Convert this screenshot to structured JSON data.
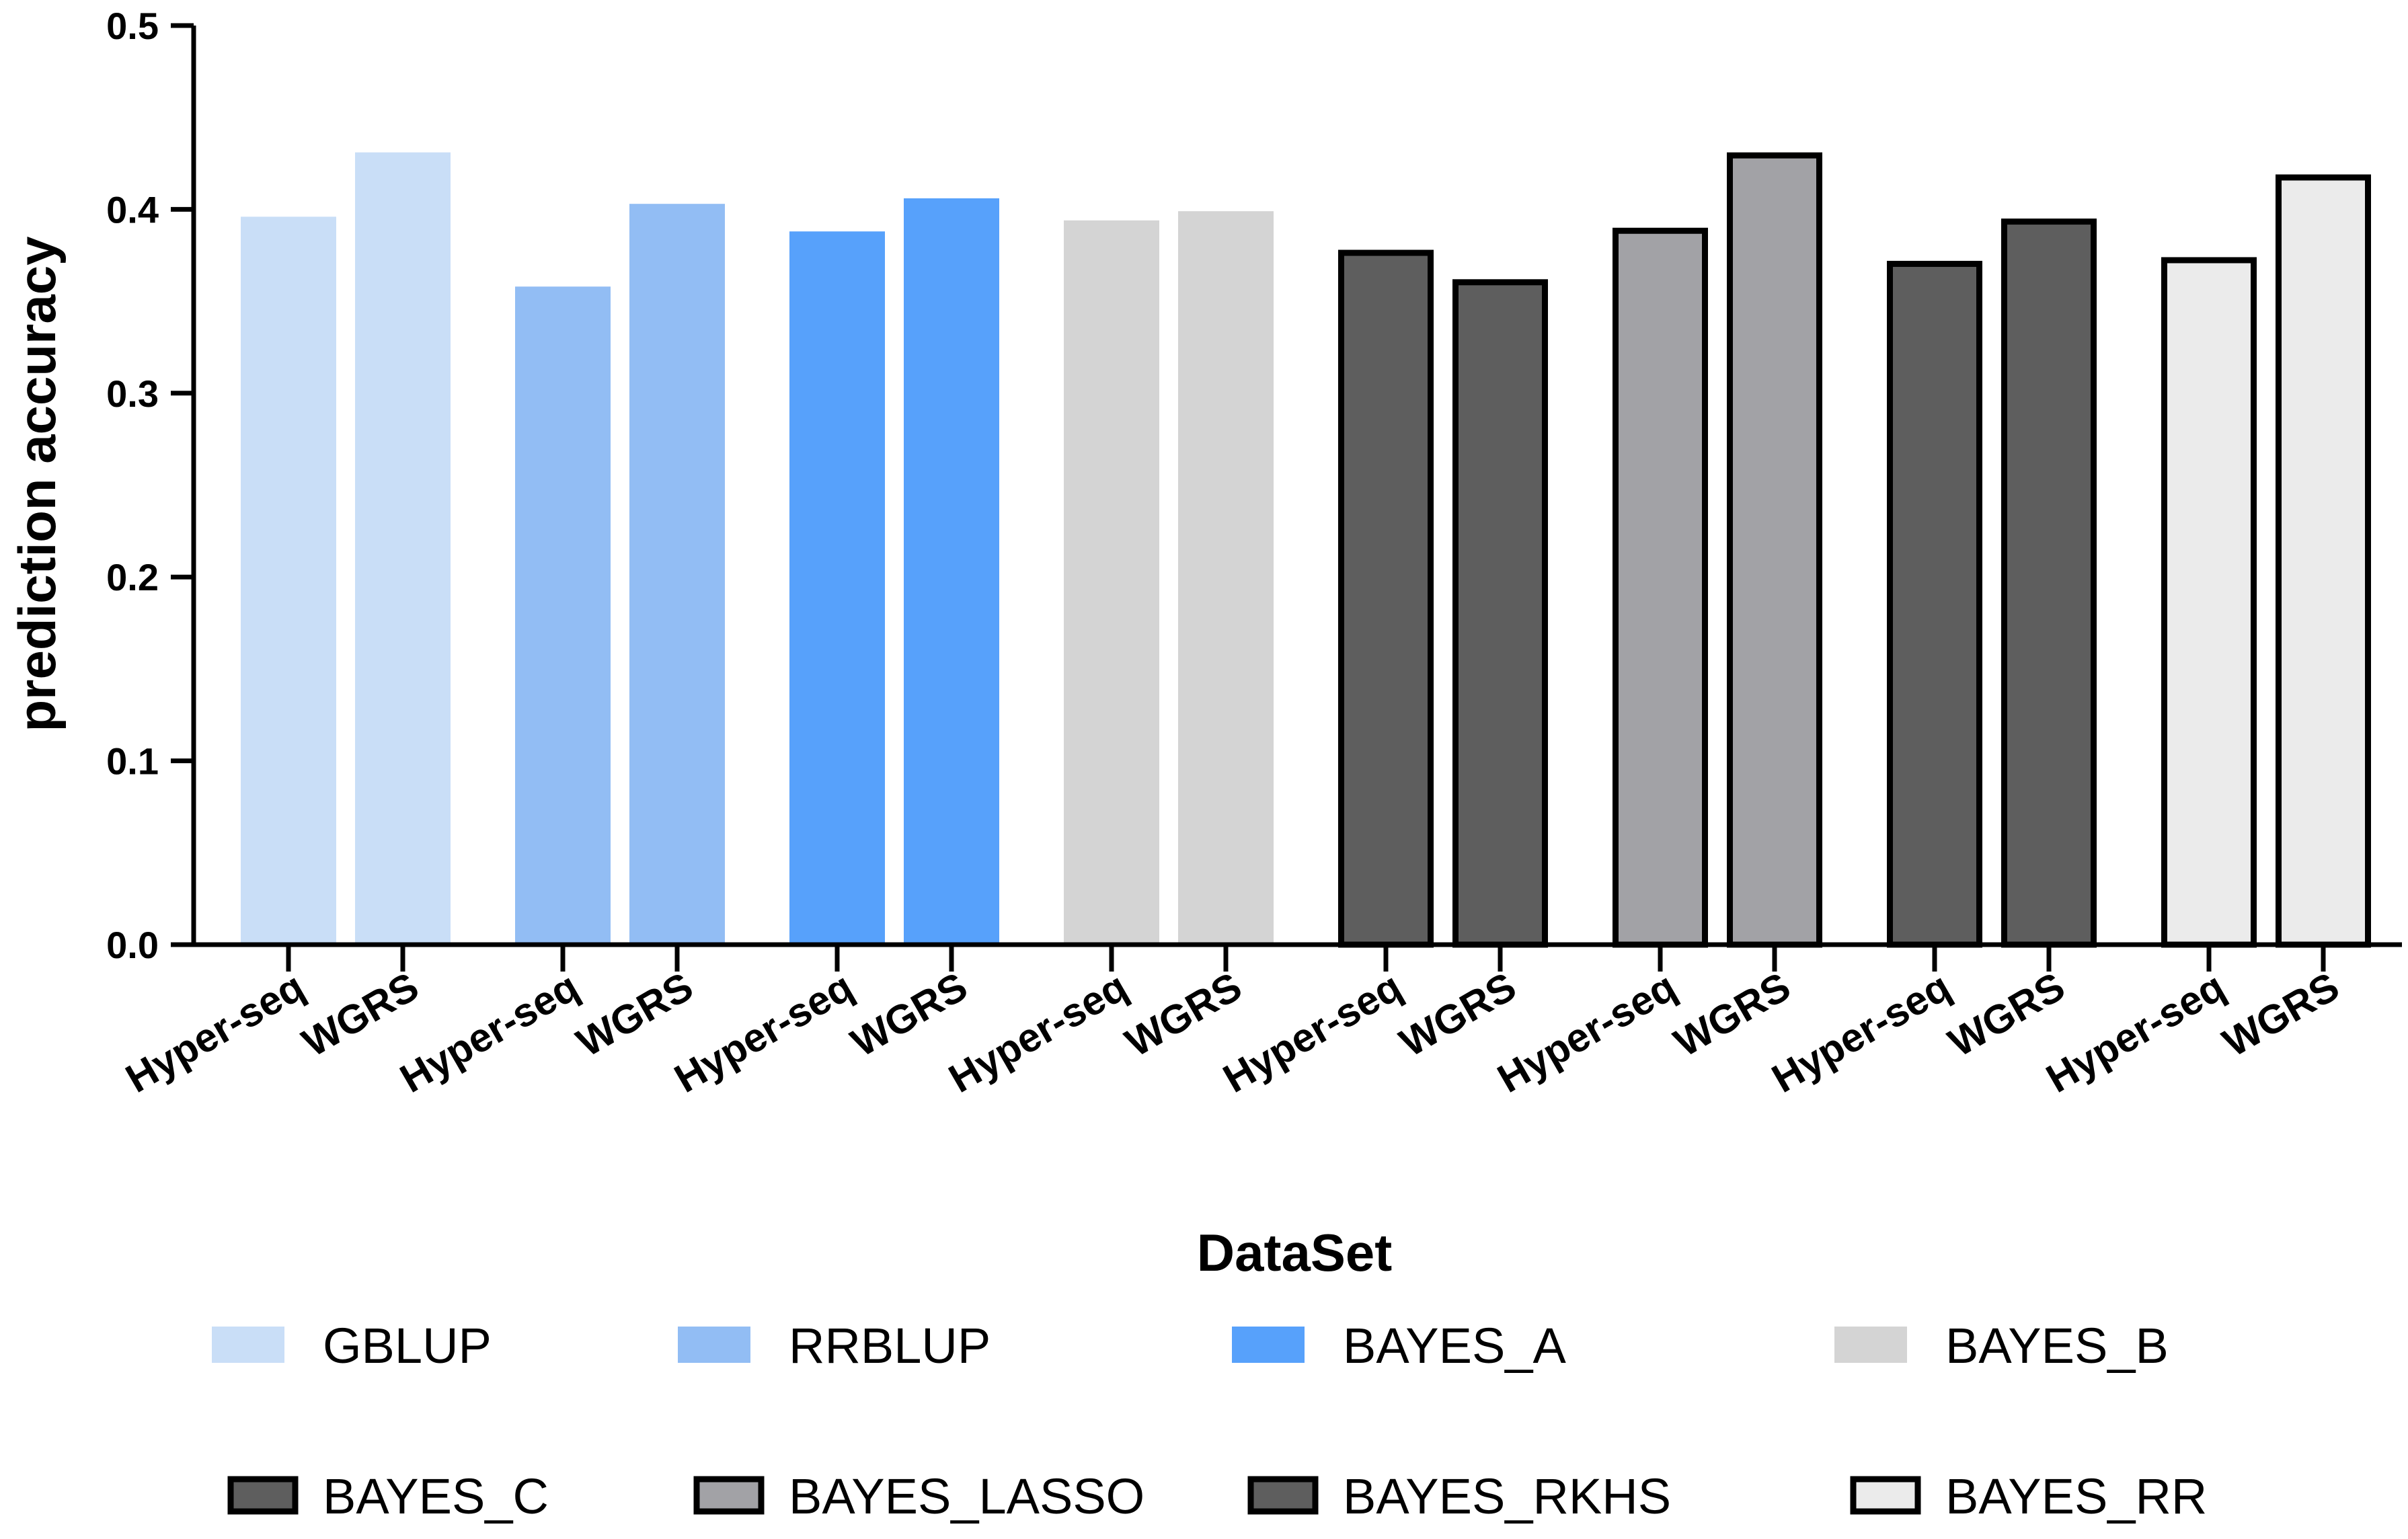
{
  "chart_data": {
    "type": "bar",
    "title": "",
    "xlabel": "DataSet",
    "ylabel": "prediction accuracy",
    "ylim": [
      0,
      0.5
    ],
    "yticks": [
      "0.0",
      "0.1",
      "0.2",
      "0.3",
      "0.4",
      "0.5"
    ],
    "grid": false,
    "legend_position": "bottom",
    "categories": [
      "Hyper-seq",
      "WGRS"
    ],
    "series": [
      {
        "name": "GBLUP",
        "values": [
          0.396,
          0.431
        ],
        "color": "#c9def7",
        "outlined": false
      },
      {
        "name": "RRBLUP",
        "values": [
          0.358,
          0.403
        ],
        "color": "#92bdf4",
        "outlined": false
      },
      {
        "name": "BAYES_A",
        "values": [
          0.388,
          0.406
        ],
        "color": "#57a1fb",
        "outlined": false
      },
      {
        "name": "BAYES_B",
        "values": [
          0.394,
          0.399
        ],
        "color": "#d4d4d4",
        "outlined": false
      },
      {
        "name": "BAYES_C",
        "values": [
          0.378,
          0.362
        ],
        "color": "#5e5e5e",
        "outlined": true
      },
      {
        "name": "BAYES_LASSO",
        "values": [
          0.39,
          0.431
        ],
        "color": "#a2a2a6",
        "outlined": true
      },
      {
        "name": "BAYES_RKHS",
        "values": [
          0.372,
          0.395
        ],
        "color": "#5e5e5e",
        "outlined": true
      },
      {
        "name": "BAYES_RR",
        "values": [
          0.374,
          0.419
        ],
        "color": "#ebebeb",
        "outlined": true
      }
    ]
  }
}
